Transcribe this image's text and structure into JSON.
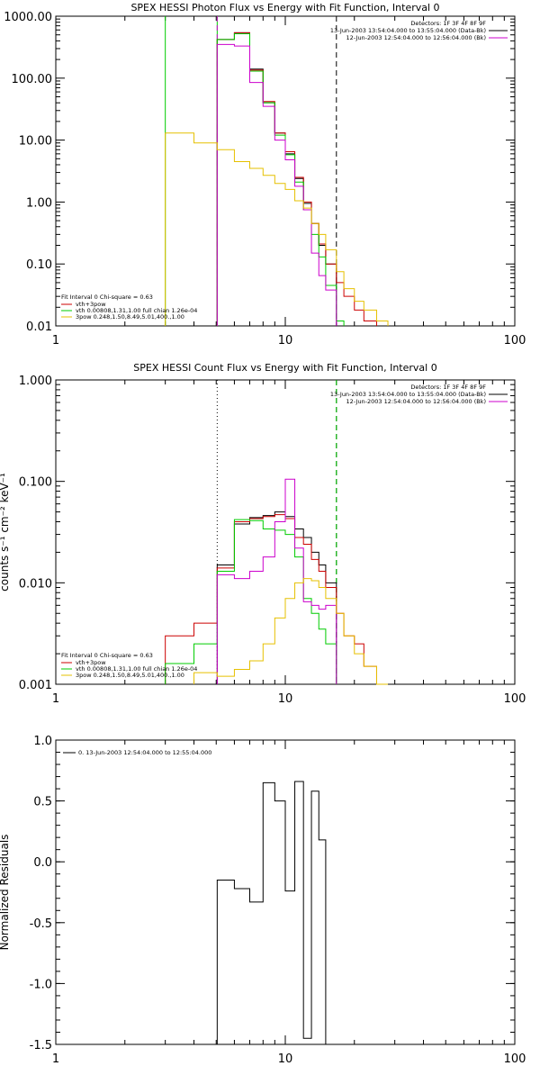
{
  "chart_data": [
    {
      "type": "line",
      "title": "SPEX HESSI Photon Flux vs Energy with Fit Function, Interval 0",
      "xscale": "log",
      "yscale": "log",
      "xlim": [
        1,
        100
      ],
      "ylim": [
        0.01,
        1000
      ],
      "xticks": [
        1,
        10,
        100
      ],
      "xtick_labels": [
        "1",
        "10",
        "100"
      ],
      "yticks": [
        0.01,
        0.1,
        1,
        10,
        100,
        1000
      ],
      "ytick_labels": [
        "0.01",
        "0.10",
        "1.00",
        "10.00",
        "100.00",
        "1000.00"
      ],
      "vlines": [
        {
          "x": 3,
          "color": "#00cc00",
          "style": "solid"
        },
        {
          "x": 5.05,
          "color": "#00cc00",
          "style": "solid"
        },
        {
          "x": 5.05,
          "color": "#cc00cc",
          "style": "dashed"
        },
        {
          "x": 16.7,
          "color": "#000000",
          "style": "dashed"
        }
      ],
      "header_lines": [
        "Detectors: 1F 3F 4F 8F 9F",
        "13-Jun-2003 13:54:04.000 to 13:55:04.000 (Data-Bk)",
        "12-Jun-2003 12:54:04.000 to 12:56:04.000 (Bk)"
      ],
      "header_colors": [
        "#000000",
        "#cc00cc"
      ],
      "legend_title": "Fit Interval 0   Chi-square = 0.63",
      "legend": [
        {
          "label": "vth+3pow",
          "color": "#cc0000"
        },
        {
          "label": "vth 0.00808,1.31,1.00  full chian 1.26e-04",
          "color": "#00cc00"
        },
        {
          "label": "3pow 0.248,1.50,8.49,5.01,400.,1.00",
          "color": "#e6c000"
        }
      ],
      "bin_edges": [
        3,
        4,
        5.05,
        6,
        7,
        8,
        9,
        10,
        11,
        12,
        13,
        14,
        15,
        16.7,
        18,
        20,
        22,
        25,
        28
      ],
      "series": [
        {
          "color": "#000000",
          "values": [
            null,
            null,
            420,
            540,
            140,
            40,
            13,
            6,
            2.4,
            0.95,
            0.45,
            0.2,
            0.1,
            null,
            null,
            null,
            null,
            null
          ]
        },
        {
          "color": "#cc0000",
          "values": [
            null,
            null,
            420,
            540,
            135,
            42,
            13,
            6.5,
            2.5,
            1.0,
            0.45,
            0.21,
            0.1,
            0.05,
            0.03,
            0.018,
            0.012,
            null
          ]
        },
        {
          "color": "#00cc00",
          "values": [
            null,
            null,
            420,
            520,
            130,
            40,
            12,
            5.8,
            2.1,
            0.75,
            0.3,
            0.13,
            0.045,
            0.012,
            null,
            null,
            null,
            null
          ]
        },
        {
          "color": "#cc00cc",
          "values": [
            null,
            null,
            350,
            330,
            85,
            35,
            10,
            4.8,
            1.8,
            0.75,
            0.15,
            0.065,
            0.038,
            null,
            null,
            null,
            null,
            null
          ]
        },
        {
          "color": "#e6c000",
          "values": [
            13,
            9,
            7,
            4.5,
            3.5,
            2.7,
            2.0,
            1.6,
            1.05,
            0.8,
            0.45,
            0.3,
            0.17,
            0.075,
            0.04,
            0.025,
            0.018,
            0.012
          ]
        }
      ]
    },
    {
      "type": "line",
      "title": "SPEX HESSI Count Flux vs Energy with Fit Function, Interval 0",
      "ylabel": "counts s⁻¹ cm⁻² keV⁻¹",
      "xscale": "log",
      "yscale": "log",
      "xlim": [
        1,
        100
      ],
      "ylim": [
        0.001,
        1
      ],
      "xticks": [
        1,
        10,
        100
      ],
      "xtick_labels": [
        "1",
        "10",
        "100"
      ],
      "yticks": [
        0.001,
        0.01,
        0.1,
        1
      ],
      "ytick_labels": [
        "0.001",
        "0.010",
        "0.100",
        "1.000"
      ],
      "vlines": [
        {
          "x": 5.05,
          "color": "#000000",
          "style": "dotted"
        },
        {
          "x": 16.7,
          "color": "#000000",
          "style": "dashed"
        },
        {
          "x": 16.7,
          "color": "#00cc00",
          "style": "dashed"
        }
      ],
      "header_lines": [
        "Detectors: 1F 3F 4F 8F 9F",
        "13-Jun-2003 13:54:04.000 to 13:55:04.000 (Data-Bk)",
        "12-Jun-2003 12:54:04.000 to 12:56:04.000 (Bk)"
      ],
      "header_colors": [
        "#000000",
        "#cc00cc"
      ],
      "legend_title": "Fit Interval 0   Chi-square = 0.63",
      "legend": [
        {
          "label": "vth+3pow",
          "color": "#cc0000"
        },
        {
          "label": "vth 0.00808,1.31,1.00  full chian 1.26e-04",
          "color": "#00cc00"
        },
        {
          "label": "3pow 0.248,1.50,8.49,5.01,400.,1.00",
          "color": "#e6c000"
        }
      ],
      "bin_edges": [
        3,
        4,
        5.05,
        6,
        7,
        8,
        9,
        10,
        11,
        12,
        13,
        14,
        15,
        16.7,
        18,
        20,
        22,
        25,
        28
      ],
      "series": [
        {
          "color": "#000000",
          "values": [
            null,
            null,
            0.015,
            0.038,
            0.044,
            0.046,
            0.05,
            0.045,
            0.034,
            0.028,
            0.02,
            0.015,
            0.01,
            null,
            null,
            null,
            null,
            null
          ]
        },
        {
          "color": "#cc0000",
          "values": [
            0.003,
            0.004,
            0.014,
            0.04,
            0.043,
            0.045,
            0.047,
            0.043,
            0.028,
            0.024,
            0.017,
            0.013,
            0.009,
            0.005,
            0.003,
            0.0025,
            0.0015,
            null
          ]
        },
        {
          "color": "#00cc00",
          "values": [
            0.0016,
            0.0025,
            0.013,
            0.042,
            0.041,
            0.034,
            0.033,
            0.03,
            0.018,
            0.007,
            0.005,
            0.0035,
            0.0025,
            null,
            null,
            null,
            null,
            null
          ]
        },
        {
          "color": "#cc00cc",
          "values": [
            null,
            null,
            0.012,
            0.011,
            0.013,
            0.018,
            0.04,
            0.105,
            0.022,
            0.0065,
            0.006,
            0.0055,
            0.006,
            null,
            null,
            null,
            null,
            null
          ]
        },
        {
          "color": "#e6c000",
          "values": [
            null,
            0.0013,
            0.0012,
            0.0014,
            0.0017,
            0.0025,
            0.0045,
            0.007,
            0.01,
            0.011,
            0.0105,
            0.009,
            0.007,
            0.005,
            0.003,
            0.002,
            0.0015,
            0.001
          ]
        }
      ]
    },
    {
      "type": "line",
      "ylabel": "Normalized Residuals",
      "xscale": "log",
      "yscale": "linear",
      "xlim": [
        1,
        100
      ],
      "ylim": [
        -1.5,
        1.0
      ],
      "xticks": [
        1,
        10,
        100
      ],
      "xtick_labels": [
        "1",
        "10",
        "100"
      ],
      "yticks": [
        -1.5,
        -1.0,
        -0.5,
        0.0,
        0.5,
        1.0
      ],
      "ytick_labels": [
        "-1.5",
        "-1.0",
        "-0.5",
        "0.0",
        "0.5",
        "1.0"
      ],
      "legend": [
        {
          "label": "0. 13-Jun-2003 12:54:04.000 to 12:55:04.000",
          "color": "#000000"
        }
      ],
      "bin_edges": [
        5.05,
        6,
        7,
        8,
        9,
        10,
        11,
        12,
        13,
        14,
        15,
        16.7
      ],
      "series": [
        {
          "color": "#000000",
          "values": [
            -0.15,
            -0.22,
            -0.33,
            0.65,
            0.5,
            -0.24,
            0.66,
            -1.45,
            0.58,
            0.18,
            null
          ]
        }
      ]
    }
  ]
}
